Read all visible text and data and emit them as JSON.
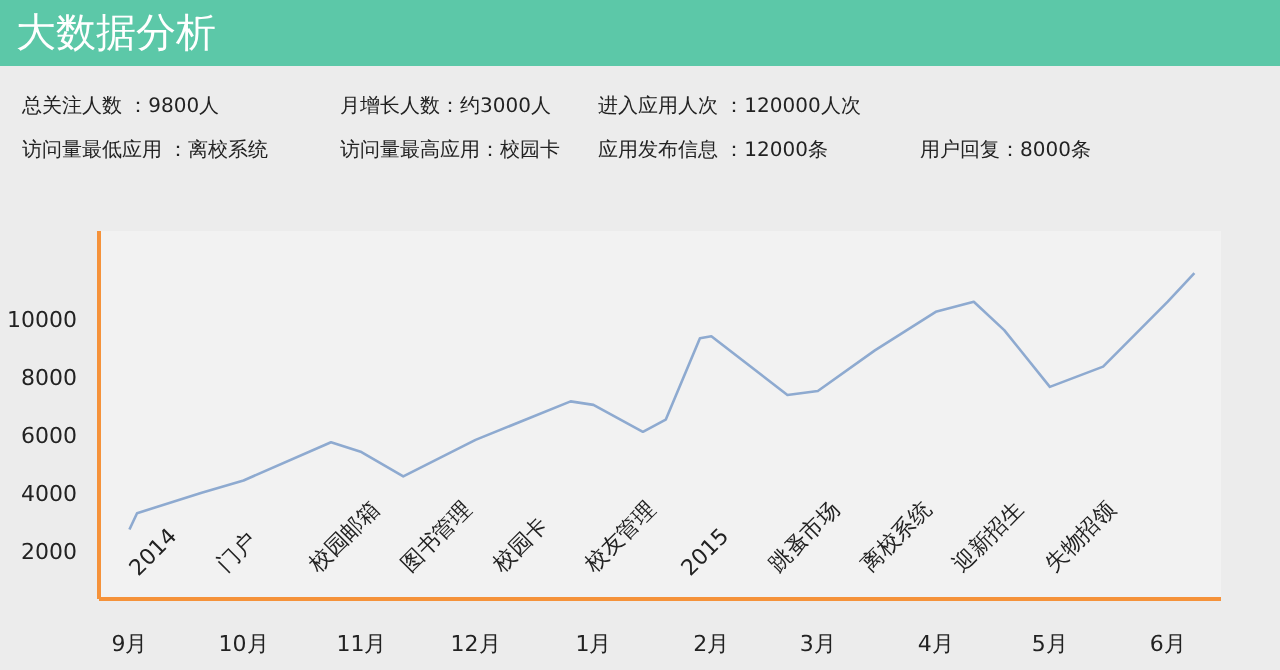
{
  "chart_data": {
    "type": "line",
    "title": "大数据分析",
    "x": [
      "2014-09-01",
      "2014-09-03",
      "2014-09-20",
      "2014-10-01",
      "2014-10-24",
      "2014-11-01",
      "2014-11-12",
      "2014-12-01",
      "2014-12-26",
      "2015-01-01",
      "2015-01-14",
      "2015-01-20",
      "2015-01-29",
      "2015-02-01",
      "2015-02-21",
      "2015-03-01",
      "2015-03-16",
      "2015-04-01",
      "2015-04-11",
      "2015-04-19",
      "2015-05-01",
      "2015-05-15",
      "2015-06-01",
      "2015-06-08"
    ],
    "series": [
      {
        "color": "#8eaad0",
        "values": [
          2700,
          3260,
          3970,
          4390,
          5710,
          5370,
          4530,
          5790,
          7120,
          7000,
          6070,
          6490,
          9300,
          9370,
          7340,
          7480,
          8880,
          10210,
          10560,
          9580,
          7620,
          8320,
          10560,
          11550
        ]
      }
    ],
    "xlim": [
      "2014-08-24",
      "2015-06-15"
    ],
    "ylim": [
      300,
      13000
    ],
    "xticks": [
      {
        "value": "2014-09",
        "label": "9月"
      },
      {
        "value": "2014-10",
        "label": "10月"
      },
      {
        "value": "2014-11",
        "label": "11月"
      },
      {
        "value": "2014-12",
        "label": "12月"
      },
      {
        "value": "2015-01",
        "label": "1月"
      },
      {
        "value": "2015-02",
        "label": "2月"
      },
      {
        "value": "2015-03",
        "label": "3月"
      },
      {
        "value": "2015-04",
        "label": "4月"
      },
      {
        "value": "2015-05",
        "label": "5月"
      },
      {
        "value": "2015-06",
        "label": "6月"
      }
    ],
    "yticks": [
      2000,
      4000,
      6000,
      8000,
      10000
    ],
    "grid": false,
    "marker": "none",
    "line_style": "solid",
    "annotations": [
      "总关注人数 ：9800人",
      "月增长人数：约3000人",
      "进入应用人次 ：120000人次",
      "访问量最低应用 ：离校系统",
      "访问量最高应用：校园卡",
      "应用发布信息 ：12000条",
      "用户回复：8000条",
      "2014",
      "门户",
      "校园邮箱",
      "图书管理",
      "校园卡",
      "校友管理",
      "2015",
      "跳蚤市场",
      "离校系统",
      "迎新招生",
      "失物招领"
    ]
  }
}
